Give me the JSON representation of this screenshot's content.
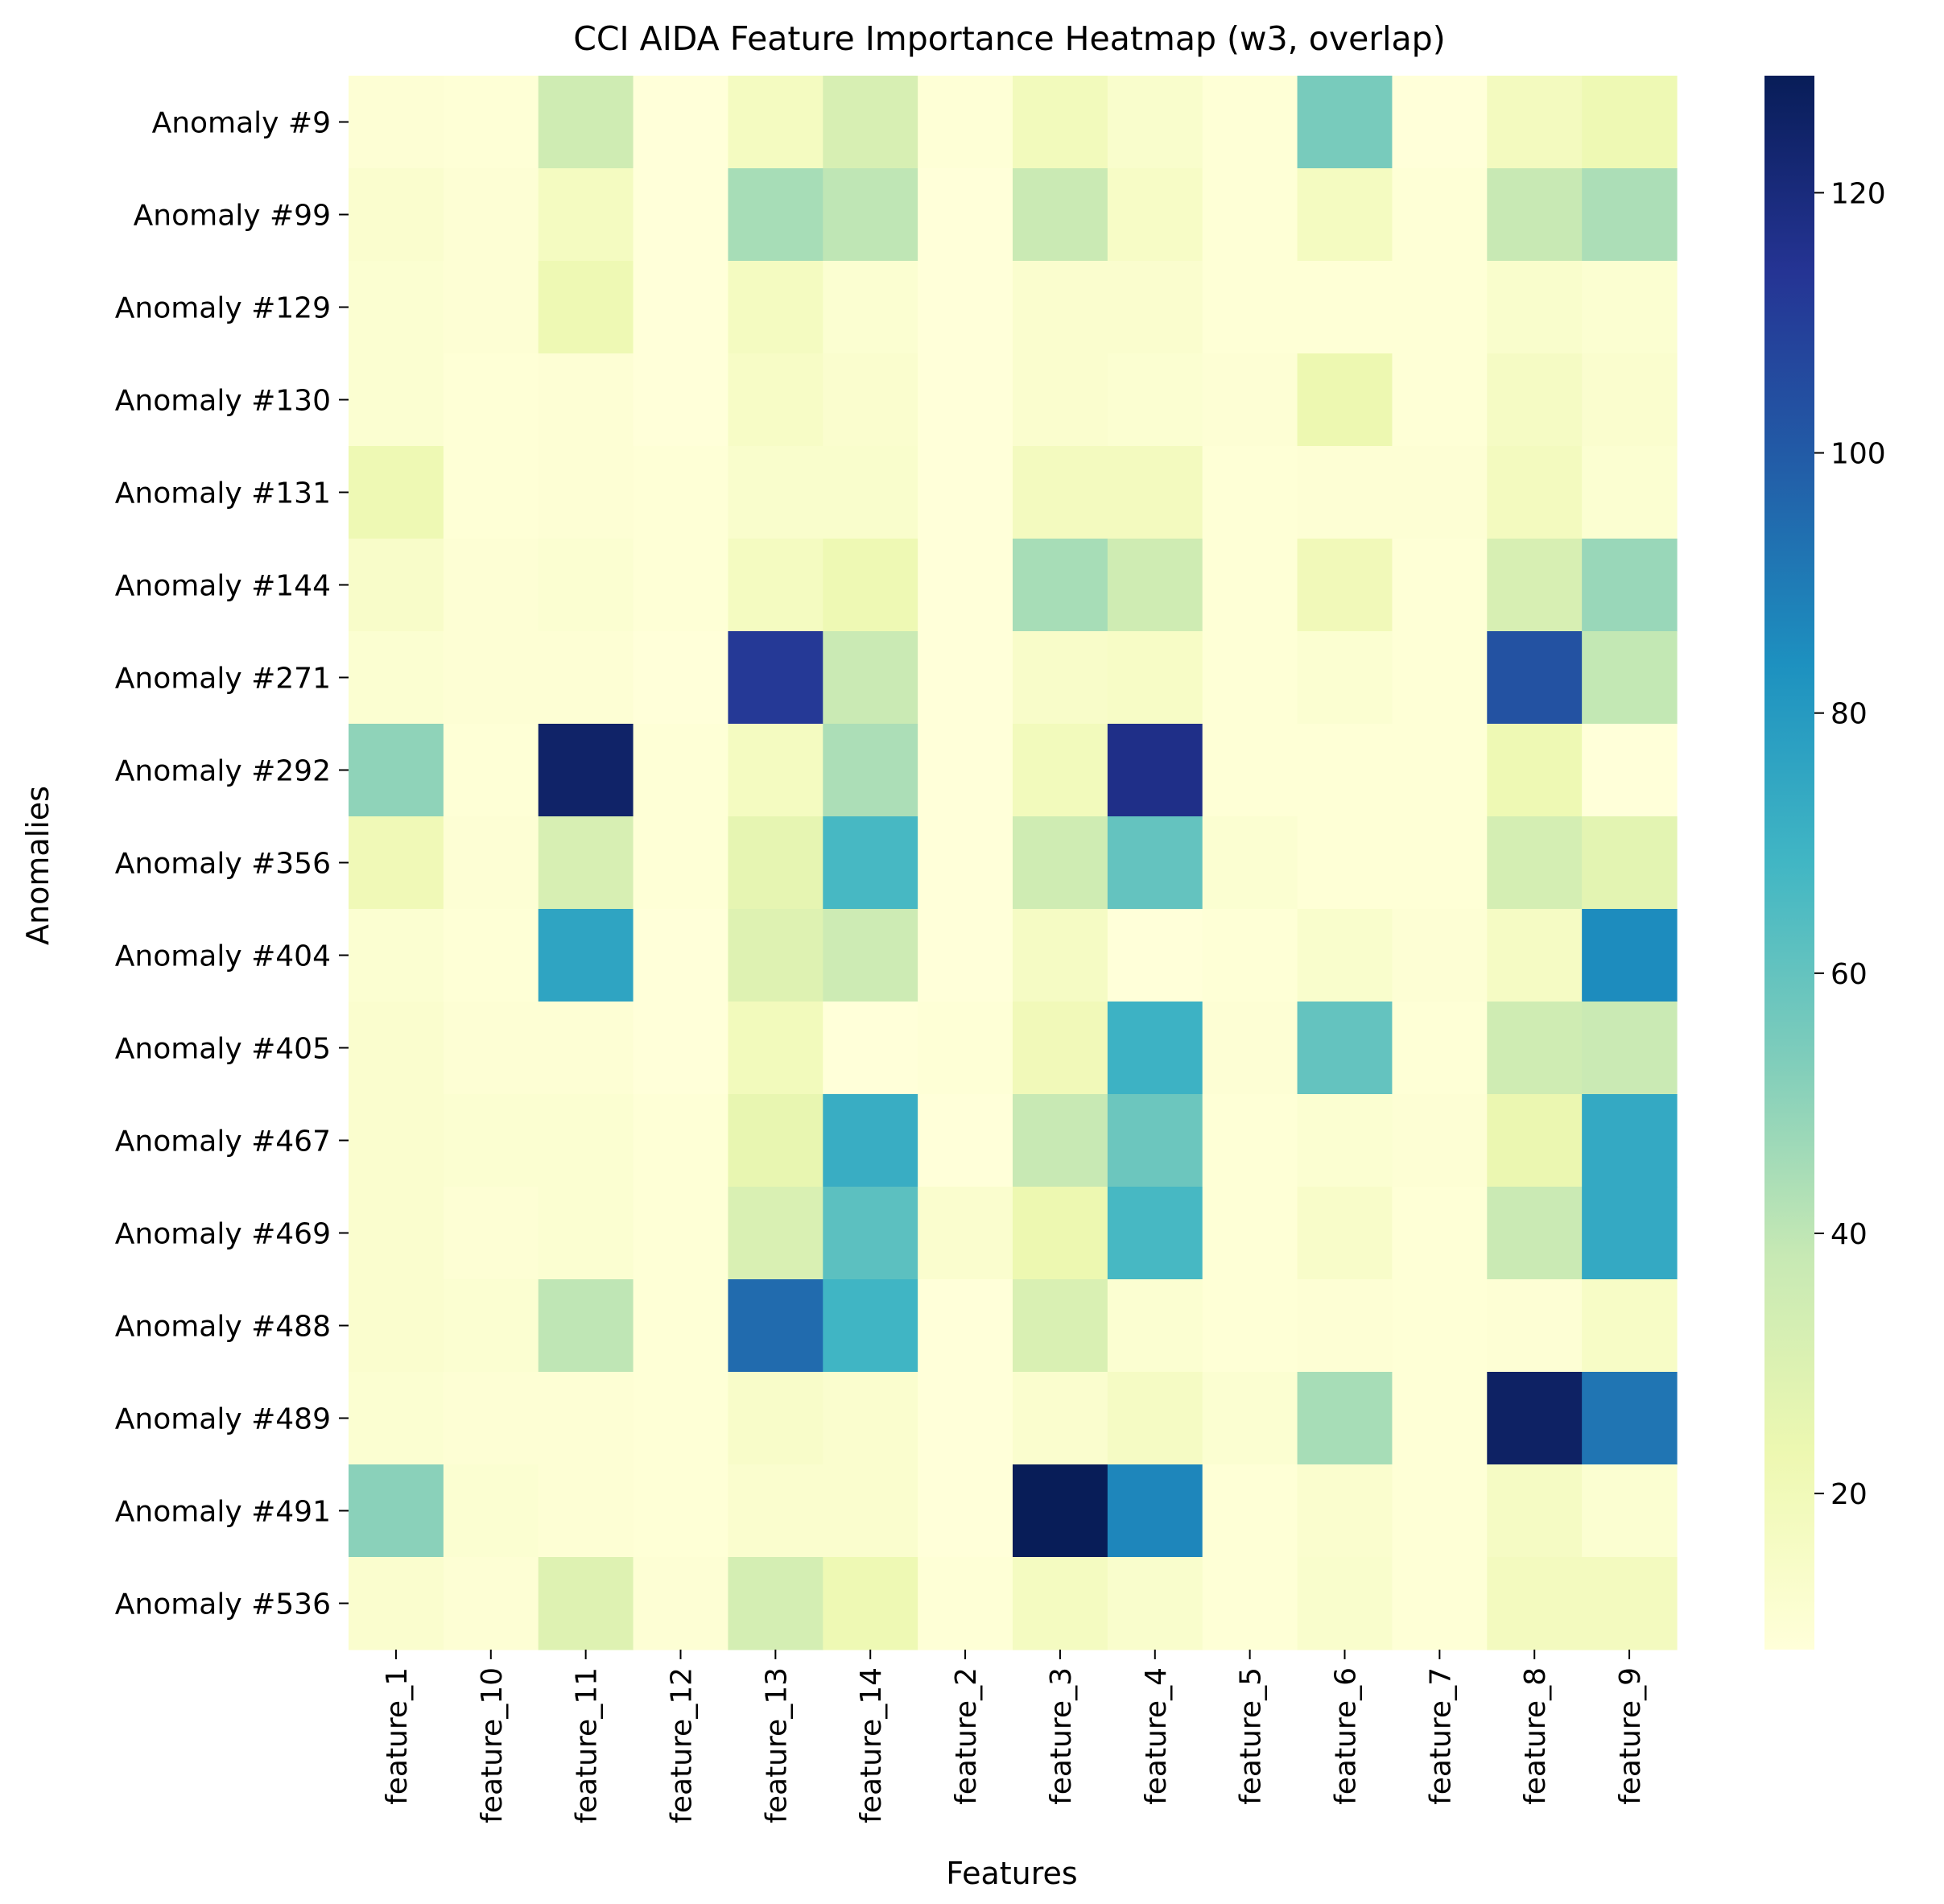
{
  "chart_data": {
    "type": "heatmap",
    "title": "CCI AIDA Feature Importance Heatmap (w3, overlap)",
    "xlabel": "Features",
    "ylabel": "Anomalies",
    "x_categories": [
      "feature_1",
      "feature_10",
      "feature_11",
      "feature_12",
      "feature_13",
      "feature_14",
      "feature_2",
      "feature_3",
      "feature_4",
      "feature_5",
      "feature_6",
      "feature_7",
      "feature_8",
      "feature_9"
    ],
    "y_categories": [
      "Anomaly #9",
      "Anomaly #99",
      "Anomaly #129",
      "Anomaly #130",
      "Anomaly #131",
      "Anomaly #144",
      "Anomaly #271",
      "Anomaly #292",
      "Anomaly #356",
      "Anomaly #404",
      "Anomaly #405",
      "Anomaly #467",
      "Anomaly #469",
      "Anomaly #488",
      "Anomaly #489",
      "Anomaly #491",
      "Anomaly #536"
    ],
    "values": [
      [
        10,
        9,
        35,
        8,
        17,
        32,
        9,
        19,
        13,
        9,
        55,
        8,
        18,
        22
      ],
      [
        12,
        10,
        17,
        8,
        45,
        40,
        8,
        37,
        15,
        9,
        17,
        9,
        38,
        44
      ],
      [
        11,
        10,
        22,
        8,
        17,
        11,
        8,
        12,
        12,
        9,
        9,
        9,
        13,
        11
      ],
      [
        11,
        9,
        10,
        8,
        15,
        12,
        8,
        12,
        11,
        10,
        23,
        9,
        16,
        12
      ],
      [
        22,
        9,
        10,
        9,
        13,
        13,
        8,
        18,
        18,
        9,
        10,
        10,
        18,
        11
      ],
      [
        14,
        10,
        11,
        9,
        17,
        22,
        8,
        45,
        35,
        9,
        20,
        9,
        32,
        48
      ],
      [
        11,
        10,
        10,
        8,
        112,
        37,
        8,
        14,
        15,
        9,
        11,
        9,
        103,
        39
      ],
      [
        50,
        9,
        125,
        9,
        17,
        44,
        8,
        19,
        117,
        9,
        9,
        9,
        22,
        8
      ],
      [
        21,
        10,
        32,
        9,
        26,
        67,
        8,
        35,
        60,
        11,
        9,
        9,
        33,
        27
      ],
      [
        11,
        9,
        76,
        8,
        29,
        36,
        8,
        16,
        8,
        9,
        13,
        10,
        16,
        85
      ],
      [
        12,
        10,
        10,
        8,
        19,
        8,
        9,
        20,
        70,
        10,
        60,
        9,
        35,
        37
      ],
      [
        12,
        11,
        11,
        9,
        25,
        72,
        8,
        38,
        58,
        9,
        11,
        10,
        24,
        74
      ],
      [
        12,
        10,
        11,
        9,
        31,
        62,
        12,
        23,
        67,
        9,
        14,
        9,
        37,
        74
      ],
      [
        12,
        11,
        40,
        9,
        95,
        69,
        8,
        31,
        11,
        9,
        10,
        9,
        10,
        15
      ],
      [
        11,
        10,
        10,
        9,
        14,
        12,
        8,
        12,
        16,
        11,
        45,
        9,
        126,
        92
      ],
      [
        51,
        11,
        10,
        9,
        12,
        12,
        8,
        129,
        87,
        9,
        12,
        9,
        16,
        11
      ],
      [
        12,
        10,
        29,
        10,
        33,
        22,
        9,
        17,
        13,
        9,
        13,
        9,
        18,
        18
      ]
    ],
    "colorbar": {
      "colormap": "YlGnBu",
      "min": 8,
      "max": 129,
      "ticks": [
        20,
        40,
        60,
        80,
        100,
        120
      ]
    },
    "grid": false,
    "legend": "colorbar-right"
  }
}
